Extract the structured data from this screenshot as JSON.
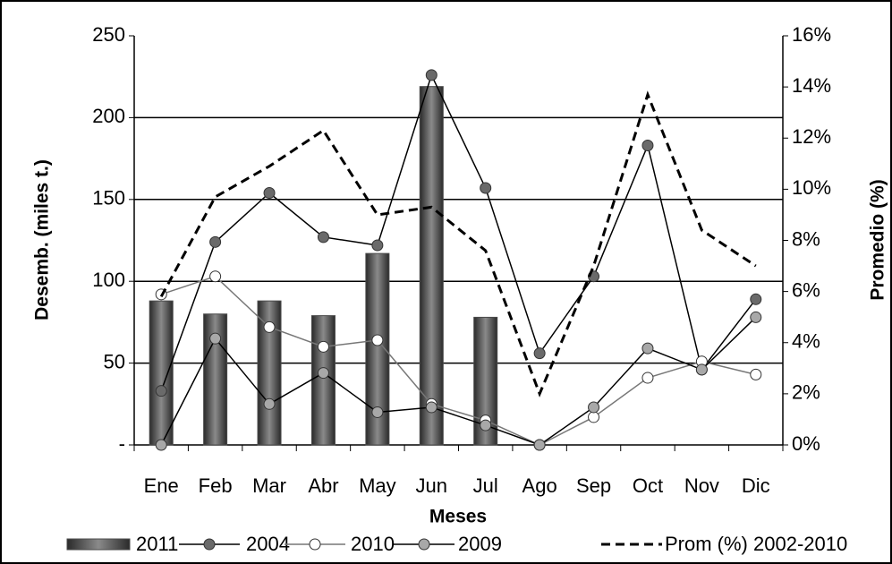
{
  "chart_data": {
    "type": "combo",
    "ylabel": "Desemb. (miles t.)",
    "y2label": "Promedio (%)",
    "xlabel": "Meses",
    "categories": [
      "Ene",
      "Feb",
      "Mar",
      "Abr",
      "May",
      "Jun",
      "Jul",
      "Ago",
      "Sep",
      "Oct",
      "Nov",
      "Dic"
    ],
    "ylim": [
      0,
      250
    ],
    "yticks": [
      {
        "value": 0,
        "label": "-"
      },
      50,
      100,
      150,
      200,
      250
    ],
    "y2lim": [
      0,
      16
    ],
    "y2ticks": [
      {
        "value": 0,
        "label": "0%"
      },
      {
        "value": 2,
        "label": "2%"
      },
      {
        "value": 4,
        "label": "4%"
      },
      {
        "value": 6,
        "label": "6%"
      },
      {
        "value": 8,
        "label": "8%"
      },
      {
        "value": 10,
        "label": "10%"
      },
      {
        "value": 12,
        "label": "12%"
      },
      {
        "value": 14,
        "label": "14%"
      },
      {
        "value": 16,
        "label": "16%"
      }
    ],
    "grid": true,
    "legend": "bottom",
    "series": [
      {
        "name": "2011",
        "kind": "bar",
        "color": "#4a4a4a",
        "values": [
          88,
          80,
          88,
          79,
          117,
          219,
          78,
          null,
          null,
          null,
          null,
          null
        ]
      },
      {
        "name": "2004",
        "kind": "line",
        "color": "#000000",
        "marker_color": "#6a6a6a",
        "values": [
          33,
          124,
          154,
          127,
          122,
          226,
          157,
          56,
          103,
          183,
          46,
          89
        ]
      },
      {
        "name": "2010",
        "kind": "line",
        "color": "#777777",
        "marker_color": "#ffffff",
        "values": [
          92,
          103,
          72,
          60,
          64,
          25,
          15,
          0,
          17,
          41,
          51,
          43
        ]
      },
      {
        "name": "2009",
        "kind": "line",
        "color": "#000000",
        "marker_color": "#a8a8a8",
        "values": [
          0,
          65,
          25,
          44,
          20,
          23,
          12,
          0,
          23,
          59,
          46,
          78
        ]
      },
      {
        "name": "Prom (%) 2002-2010",
        "kind": "dashed",
        "axis": "y2",
        "color": "#000000",
        "values": [
          5.8,
          9.7,
          10.9,
          12.3,
          9.0,
          9.3,
          7.6,
          2.0,
          7.0,
          13.7,
          8.4,
          7.0
        ]
      }
    ]
  }
}
